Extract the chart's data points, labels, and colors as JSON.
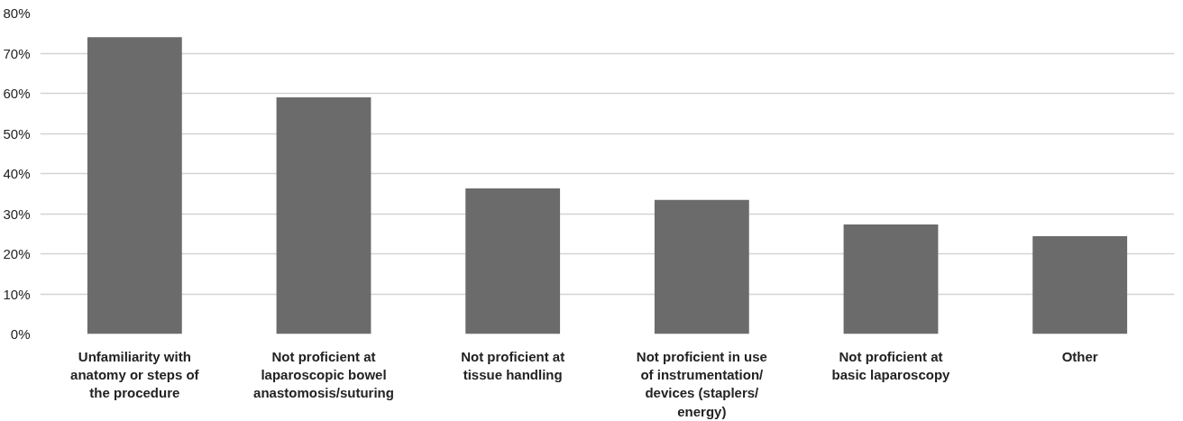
{
  "chart_data": {
    "type": "bar",
    "categories": [
      "Unfamiliarity with anatomy or steps of the procedure",
      "Not proficient at laparoscopic bowel anastomosis/suturing",
      "Not proficient at tissue handling",
      "Not proficient in use of instrumentation/ devices (staplers/ energy)",
      "Not proficient at basic laparoscopy",
      "Other"
    ],
    "values": [
      74,
      59,
      36.3,
      33.4,
      27.3,
      24.4
    ],
    "color": "#6b6b6b",
    "ylim": [
      0,
      80
    ],
    "yticks": [
      {
        "value": 0,
        "label": "0%"
      },
      {
        "value": 10,
        "label": "10%"
      },
      {
        "value": 20,
        "label": "20%"
      },
      {
        "value": 30,
        "label": "30%"
      },
      {
        "value": 40,
        "label": "40%"
      },
      {
        "value": 50,
        "label": "50%"
      },
      {
        "value": 60,
        "label": "60%"
      },
      {
        "value": 70,
        "label": "70%"
      },
      {
        "value": 80,
        "label": "80%"
      }
    ],
    "grid": "y"
  }
}
